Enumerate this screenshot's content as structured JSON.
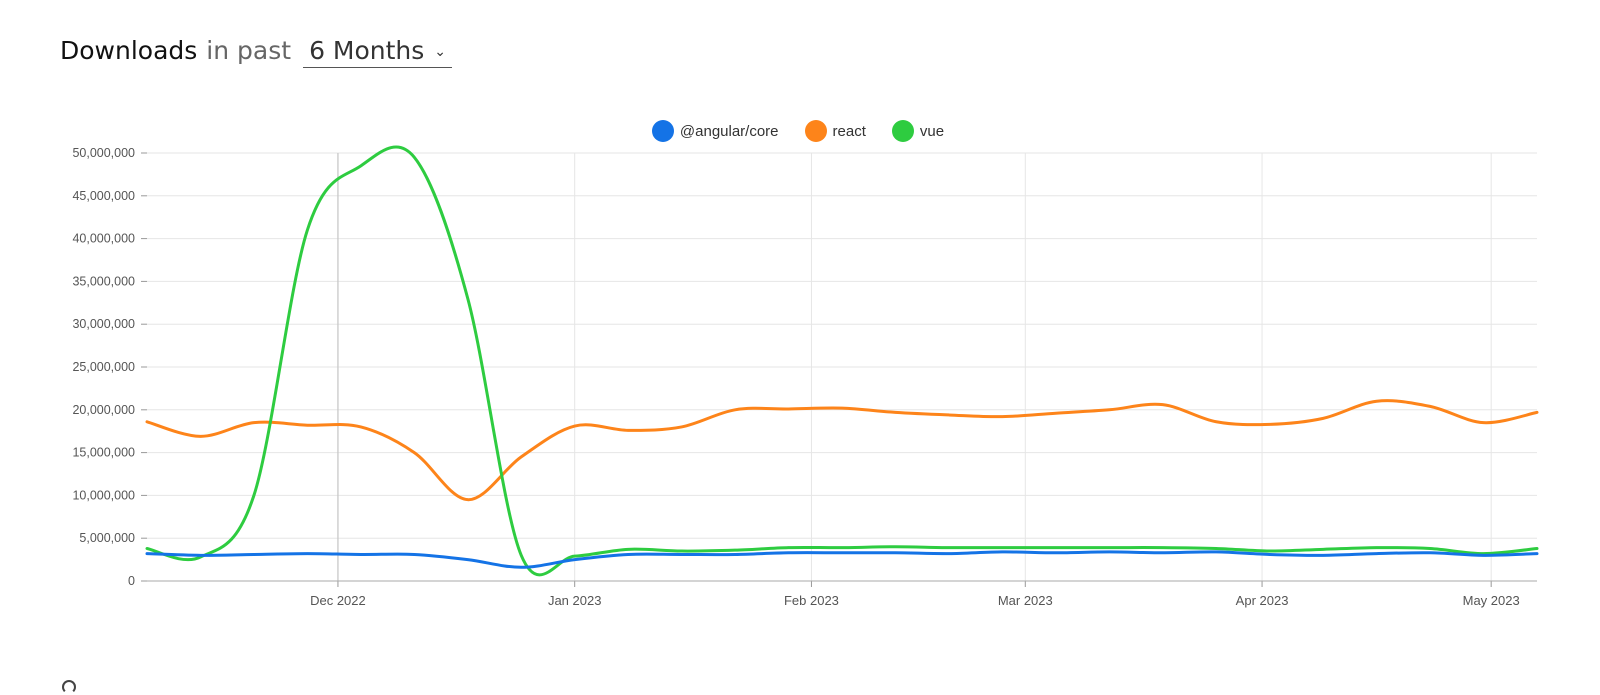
{
  "header": {
    "title_strong": "Downloads",
    "title_mid": "in past",
    "period_value": "6 Months",
    "chevron_icon": "chevron-down-icon"
  },
  "chart_data": {
    "type": "line",
    "title": "",
    "xlabel": "",
    "ylabel": "",
    "ylim": [
      0,
      50000000
    ],
    "yticks": [
      0,
      5000000,
      10000000,
      15000000,
      20000000,
      25000000,
      30000000,
      35000000,
      40000000,
      45000000,
      50000000
    ],
    "ytick_labels": [
      "0",
      "5,000,000",
      "10,000,000",
      "15,000,000",
      "20,000,000",
      "25,000,000",
      "30,000,000",
      "35,000,000",
      "40,000,000",
      "45,000,000",
      "50,000,000"
    ],
    "xlim": [
      "2022-11-06",
      "2023-05-07"
    ],
    "xticks": [
      {
        "date": "2022-12-01",
        "label": "Dec 2022"
      },
      {
        "date": "2023-01-01",
        "label": "Jan 2023"
      },
      {
        "date": "2023-02-01",
        "label": "Feb 2023"
      },
      {
        "date": "2023-03-01",
        "label": "Mar 2023"
      },
      {
        "date": "2023-04-01",
        "label": "Apr 2023"
      },
      {
        "date": "2023-05-01",
        "label": "May 2023"
      }
    ],
    "grid": true,
    "legend_position": "top-center",
    "x": [
      "2022-11-06",
      "2022-11-13",
      "2022-11-20",
      "2022-11-27",
      "2022-12-04",
      "2022-12-11",
      "2022-12-18",
      "2022-12-25",
      "2023-01-01",
      "2023-01-08",
      "2023-01-15",
      "2023-01-22",
      "2023-01-29",
      "2023-02-05",
      "2023-02-12",
      "2023-02-19",
      "2023-02-26",
      "2023-03-05",
      "2023-03-12",
      "2023-03-19",
      "2023-03-26",
      "2023-04-02",
      "2023-04-09",
      "2023-04-16",
      "2023-04-23",
      "2023-04-30",
      "2023-05-07"
    ],
    "series": [
      {
        "name": "@angular/core",
        "color": "#1473e6",
        "values": [
          3200000,
          3000000,
          3100000,
          3200000,
          3100000,
          3100000,
          2500000,
          1600000,
          2500000,
          3100000,
          3100000,
          3100000,
          3300000,
          3300000,
          3300000,
          3200000,
          3400000,
          3300000,
          3400000,
          3300000,
          3400000,
          3100000,
          3000000,
          3200000,
          3300000,
          3000000,
          3200000
        ]
      },
      {
        "name": "react",
        "color": "#fd841a",
        "values": [
          18600000,
          16900000,
          18500000,
          18200000,
          18000000,
          15000000,
          9500000,
          14500000,
          18100000,
          17600000,
          18000000,
          20000000,
          20100000,
          20200000,
          19700000,
          19400000,
          19200000,
          19600000,
          20000000,
          20600000,
          18600000,
          18300000,
          19000000,
          21000000,
          20400000,
          18500000,
          19700000
        ]
      },
      {
        "name": "vue",
        "color": "#2ecc40",
        "values": [
          3800000,
          2800000,
          10000000,
          41000000,
          48500000,
          49500000,
          33000000,
          3000000,
          2900000,
          3700000,
          3500000,
          3600000,
          3900000,
          3900000,
          4000000,
          3900000,
          3900000,
          3900000,
          3900000,
          3900000,
          3800000,
          3500000,
          3700000,
          3900000,
          3800000,
          3200000,
          3800000
        ]
      }
    ]
  }
}
